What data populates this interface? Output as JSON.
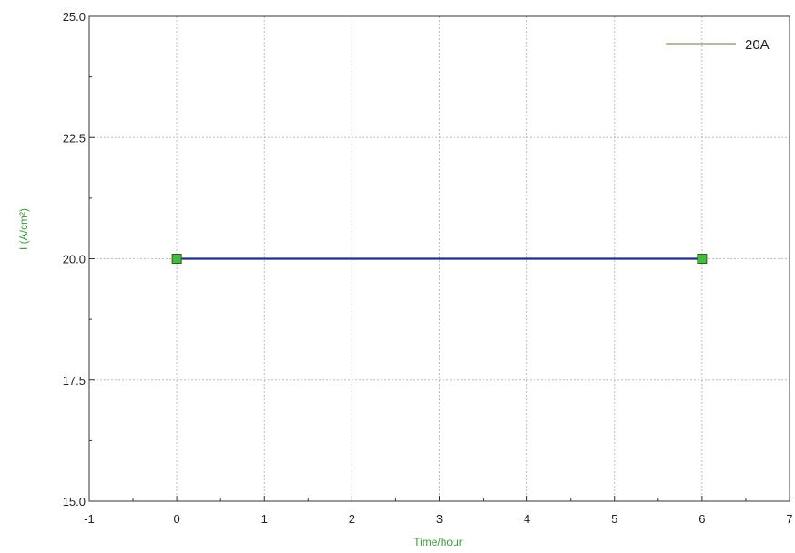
{
  "chart_data": {
    "type": "line",
    "xlabel": "Time/hour",
    "ylabel": "I (A/cm²)",
    "xlim": [
      -1,
      7
    ],
    "ylim": [
      15.0,
      25.0
    ],
    "x_ticks": [
      "-1",
      "0",
      "1",
      "2",
      "3",
      "4",
      "5",
      "6",
      "7"
    ],
    "y_ticks": [
      "15.0",
      "17.5",
      "20.0",
      "22.5",
      "25.0"
    ],
    "grid": true,
    "legend": {
      "placement": "top-right",
      "entries": [
        {
          "label": "20A",
          "color": "#9aa87a"
        }
      ]
    },
    "series": [
      {
        "name": "20A",
        "line_color": "#1f2f8a",
        "marker_color": "#3fbf3f",
        "marker_edge": "#3a5a1a",
        "marker": "square",
        "x": [
          0,
          6
        ],
        "y": [
          20.0,
          20.0
        ]
      }
    ],
    "label_color": "#3a9a3a"
  }
}
